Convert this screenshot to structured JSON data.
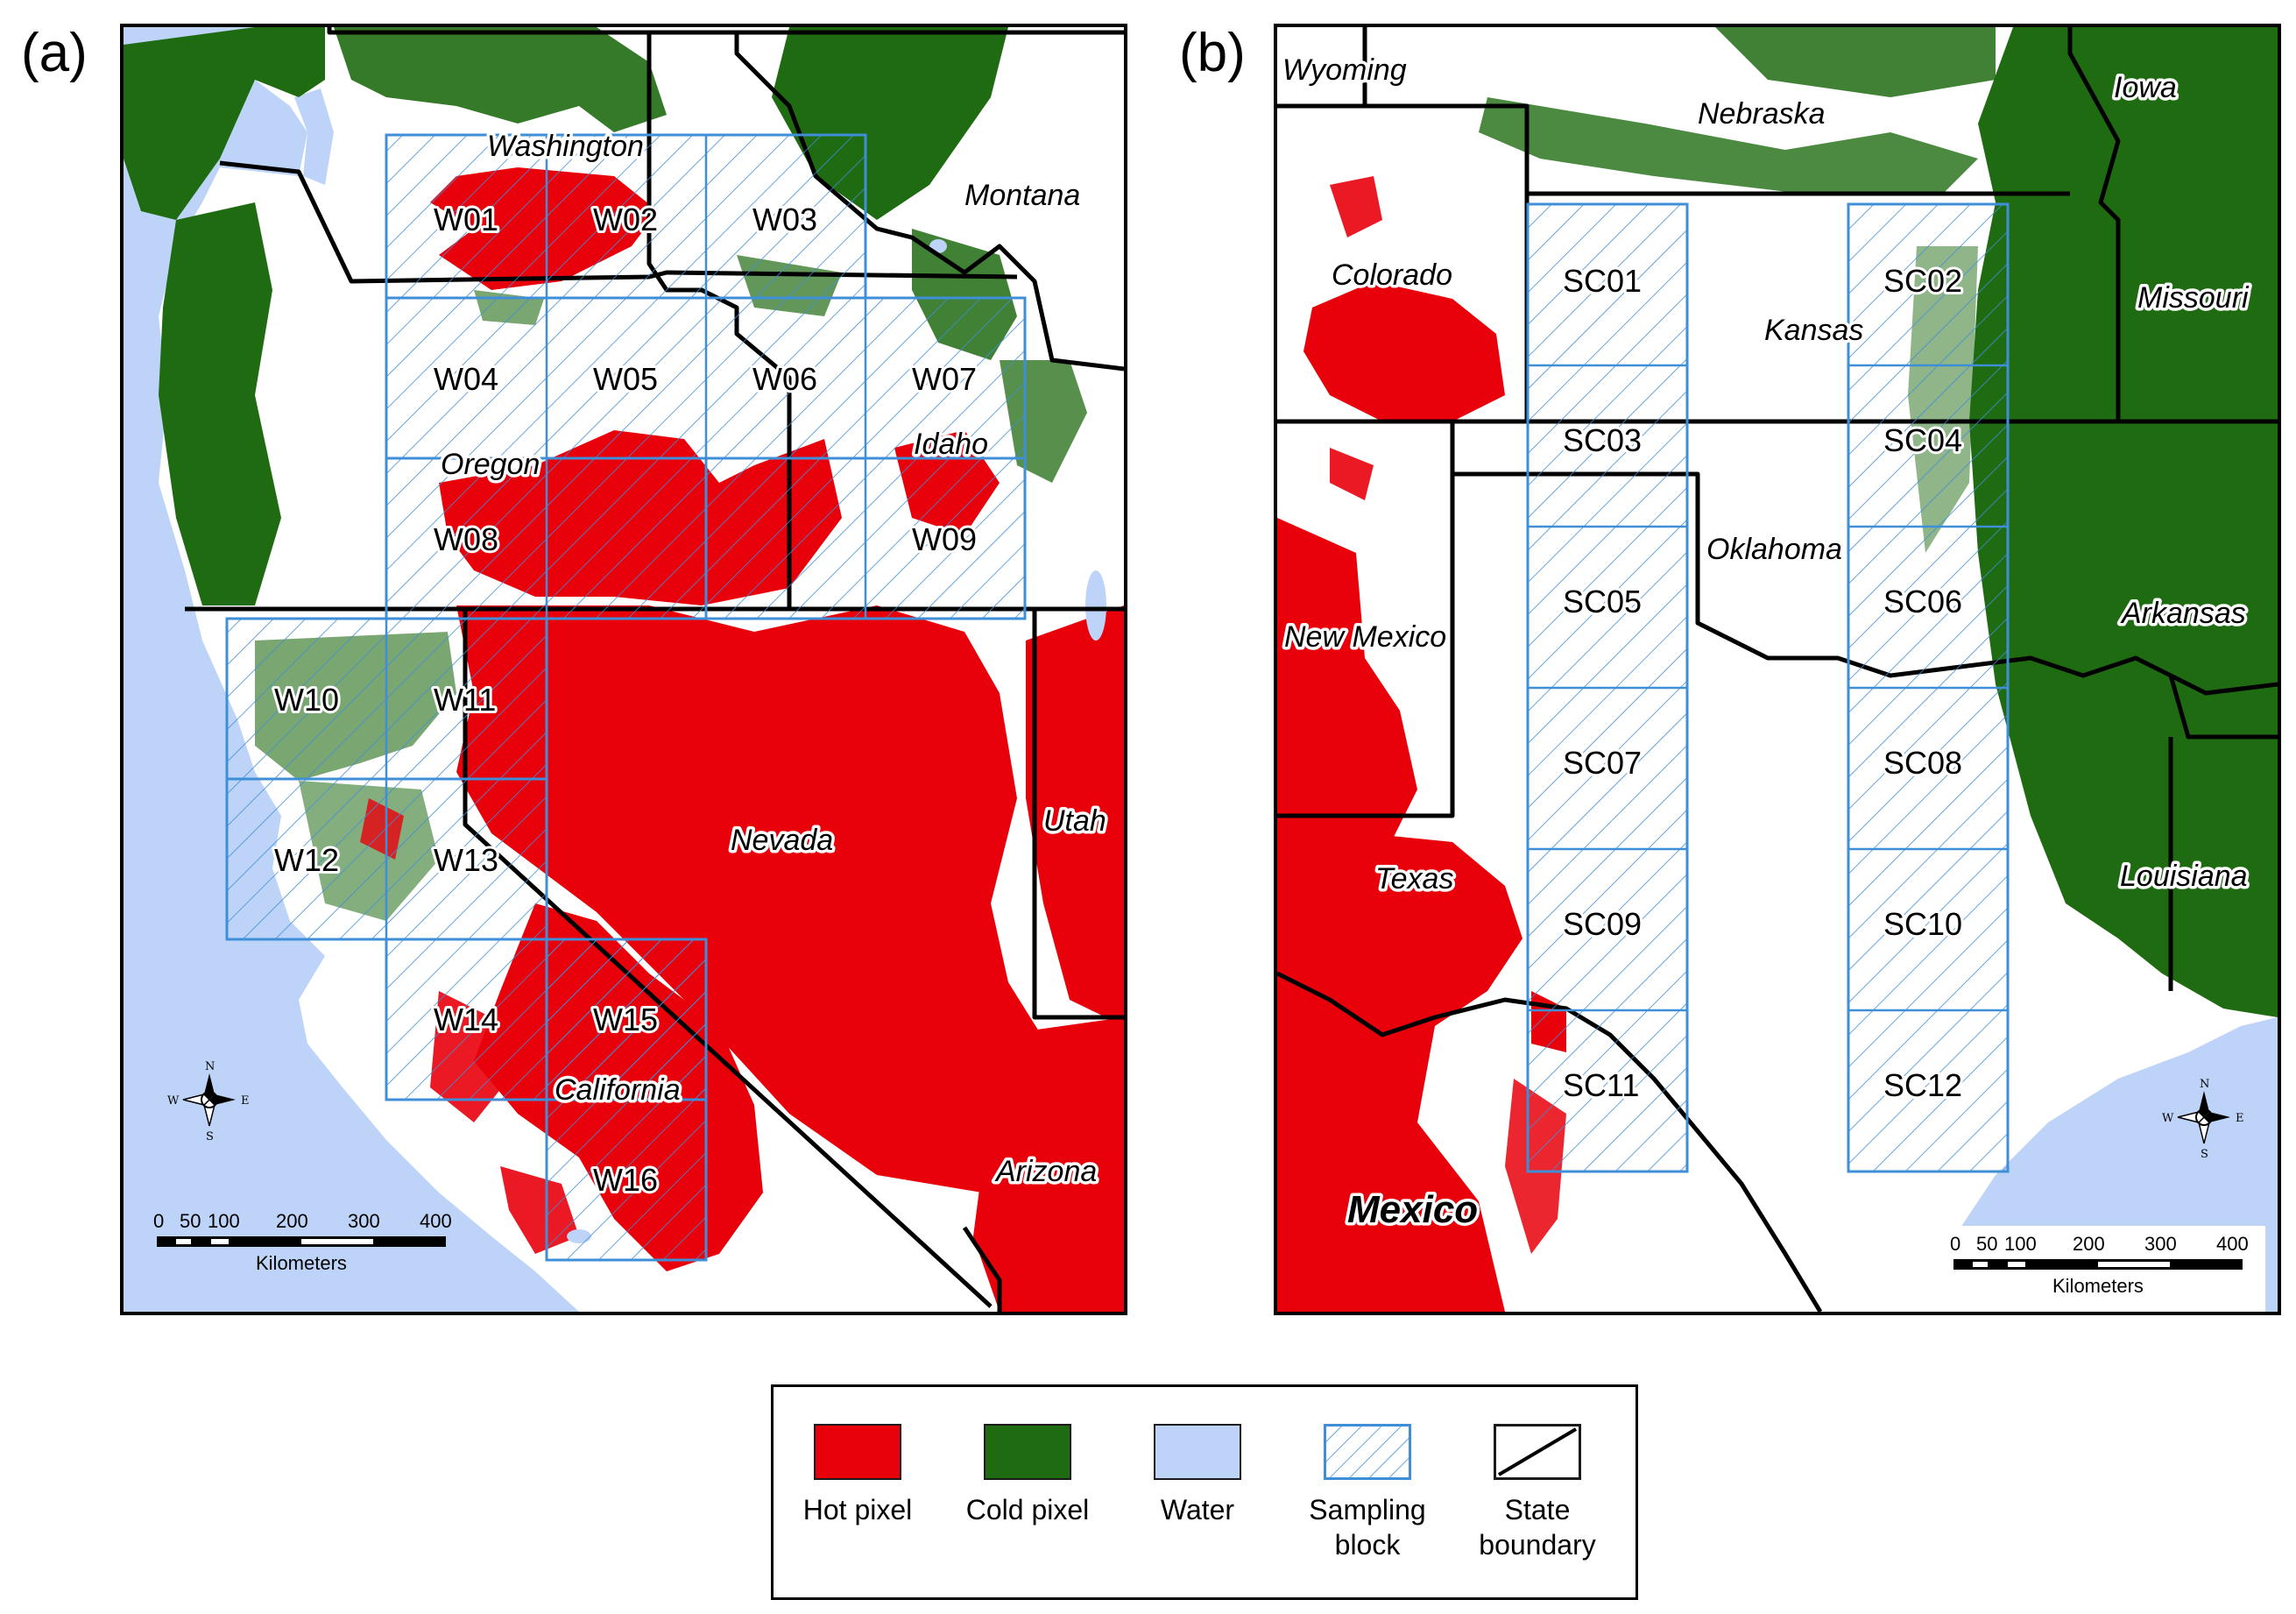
{
  "panels": {
    "a": {
      "letter": "(a)",
      "states": [
        "Washington",
        "Montana",
        "Idaho",
        "Oregon",
        "Nevada",
        "Utah",
        "California",
        "Arizona"
      ],
      "blocks": [
        "W01",
        "W02",
        "W03",
        "W04",
        "W05",
        "W06",
        "W07",
        "W08",
        "W09",
        "W10",
        "W11",
        "W12",
        "W13",
        "W14",
        "W15",
        "W16"
      ],
      "scale": {
        "ticks": [
          "0",
          "50",
          "100",
          "200",
          "300",
          "400"
        ],
        "unit": "Kilometers"
      }
    },
    "b": {
      "letter": "(b)",
      "states": [
        "Wyoming",
        "Nebraska",
        "Iowa",
        "Colorado",
        "Kansas",
        "Missouri",
        "Oklahoma",
        "New Mexico",
        "Arkansas",
        "Texas",
        "Louisiana",
        "Mexico"
      ],
      "blocks": [
        "SC01",
        "SC02",
        "SC03",
        "SC04",
        "SC05",
        "SC06",
        "SC07",
        "SC08",
        "SC09",
        "SC10",
        "SC11",
        "SC12"
      ],
      "scale": {
        "ticks": [
          "0",
          "50",
          "100",
          "200",
          "300",
          "400"
        ],
        "unit": "Kilometers"
      }
    }
  },
  "compass": {
    "n": "N",
    "s": "S",
    "e": "E",
    "w": "W"
  },
  "legend": [
    {
      "label": "Hot pixel",
      "kind": "fill",
      "color": "#e8000b"
    },
    {
      "label": "Cold pixel",
      "kind": "fill",
      "color": "#1f6b12"
    },
    {
      "label": "Water",
      "kind": "fill",
      "color": "#bed3f8"
    },
    {
      "label": "Sampling\nblock",
      "kind": "hatch",
      "color": "#3f8fd8"
    },
    {
      "label": "State\nboundary",
      "kind": "line",
      "color": "#000000"
    }
  ],
  "colors": {
    "hot": "#e8000b",
    "cold": "#1f6b12",
    "water": "#bed3f8",
    "block": "#3f8fd8",
    "boundary": "#000000"
  }
}
